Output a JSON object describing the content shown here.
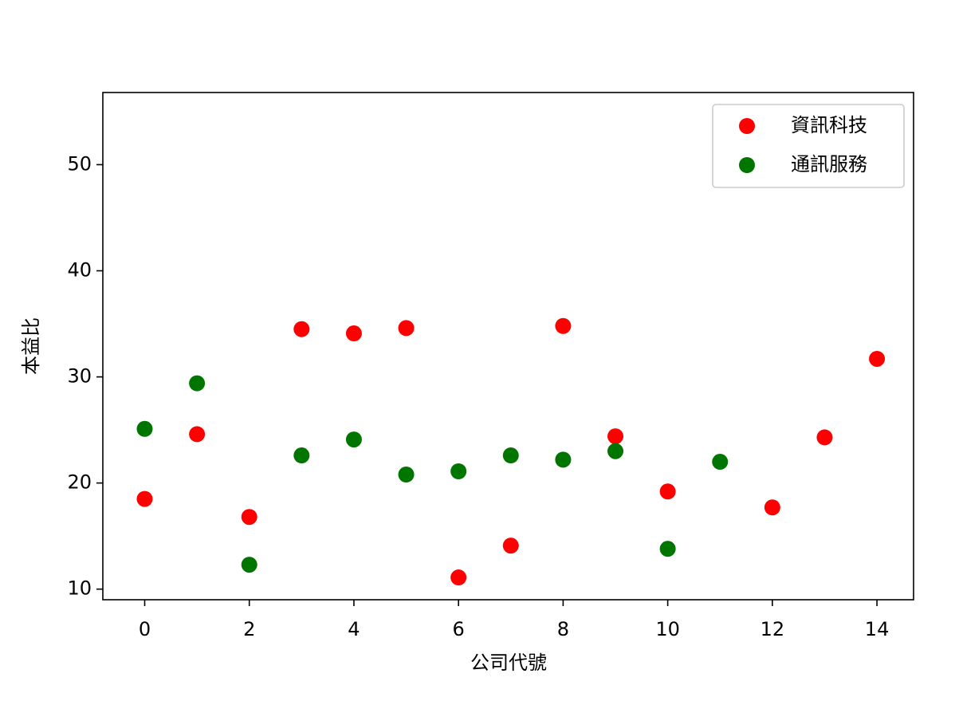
{
  "chart_data": {
    "type": "scatter",
    "xlabel": "公司代號",
    "ylabel": "本益比",
    "series": [
      {
        "name": "資訊科技",
        "color": "#ff0000",
        "x": [
          0,
          1,
          2,
          3,
          4,
          5,
          6,
          7,
          8,
          9,
          10,
          12,
          13,
          14
        ],
        "values": [
          18.5,
          24.6,
          16.8,
          34.5,
          34.1,
          34.6,
          11.1,
          14.1,
          34.8,
          24.4,
          19.2,
          17.7,
          24.3,
          31.7
        ]
      },
      {
        "name": "通訊服務",
        "color": "#007500",
        "x": [
          0,
          1,
          2,
          3,
          4,
          5,
          6,
          7,
          8,
          9,
          10,
          11
        ],
        "values": [
          25.1,
          29.4,
          12.3,
          22.6,
          24.1,
          20.8,
          21.1,
          22.6,
          22.2,
          23.0,
          13.8,
          22.0
        ]
      }
    ],
    "xlim": [
      -0.8,
      14.7
    ],
    "ylim": [
      9,
      56.8
    ],
    "xticks": [
      0,
      2,
      4,
      6,
      8,
      10,
      12,
      14
    ],
    "yticks": [
      10,
      20,
      30,
      40,
      50
    ],
    "legend": "upper-right"
  }
}
